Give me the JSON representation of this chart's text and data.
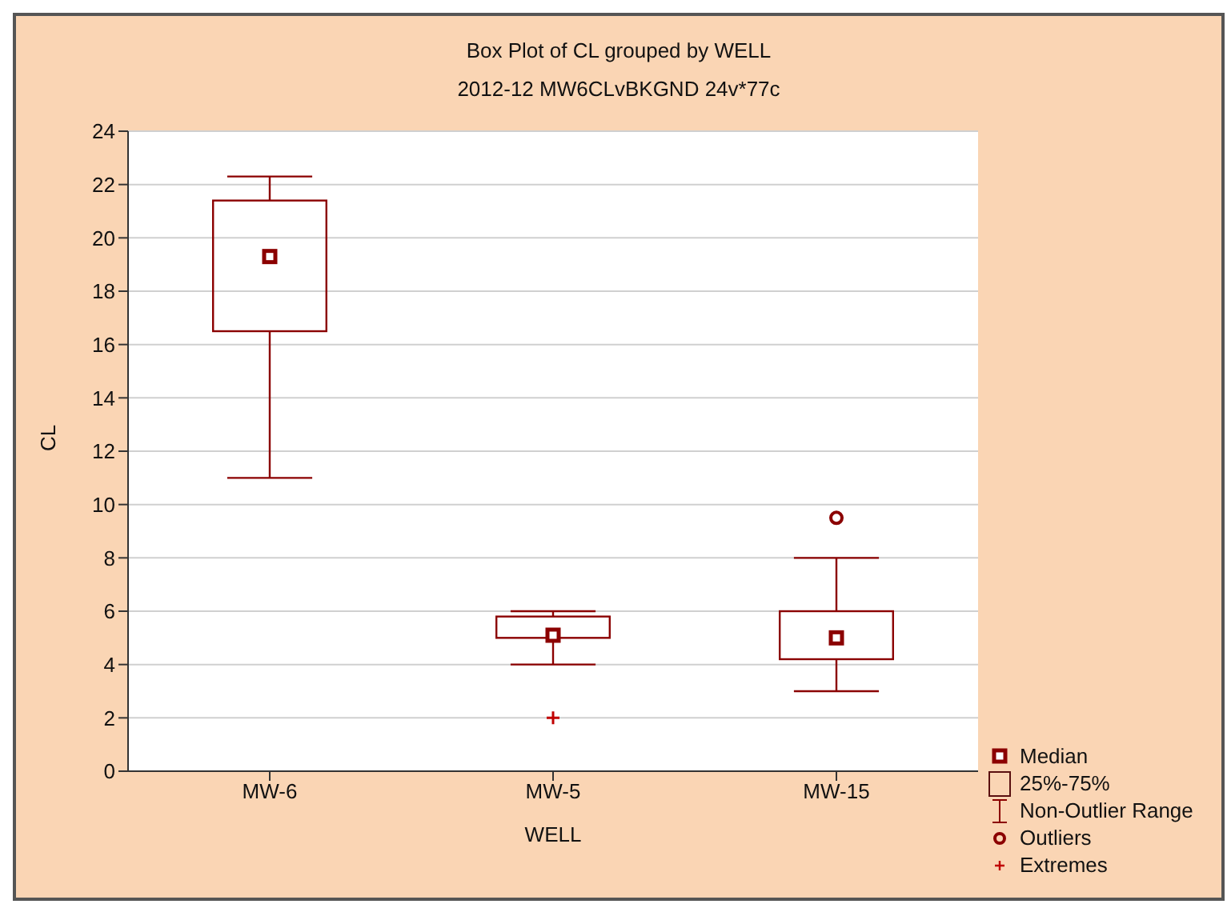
{
  "chart_data": {
    "type": "box",
    "title": "Box Plot of CL grouped by  WELL",
    "subtitle": "2012-12 MW6CLvBKGND 24v*77c",
    "xlabel": "WELL",
    "ylabel": "CL",
    "categories": [
      "MW-6",
      "MW-5",
      "MW-15"
    ],
    "series": [
      {
        "type": "box",
        "color": "#8b0000",
        "boxes": [
          {
            "low": 11.0,
            "q1": 16.5,
            "median": 19.3,
            "q3": 21.4,
            "high": 22.3
          },
          {
            "low": 4.0,
            "q1": 5.0,
            "median": 5.1,
            "q3": 5.8,
            "high": 6.0
          },
          {
            "low": 3.0,
            "q1": 4.2,
            "median": 5.0,
            "q3": 6.0,
            "high": 8.0,
            "outliers": [
              9.5
            ]
          }
        ]
      },
      {
        "type": "scatter",
        "name": "Extremes",
        "color": "#c00000",
        "marker": "cross",
        "x": [
          "MW-5"
        ],
        "values": [
          2
        ]
      }
    ],
    "ylim": [
      0,
      24
    ],
    "yticks": [
      0,
      2,
      4,
      6,
      8,
      10,
      12,
      14,
      16,
      18,
      20,
      22,
      24
    ],
    "grid": "y",
    "legend": "bottom right",
    "annotations": [
      "Median",
      "25%-75%",
      "Non-Outlier Range",
      "Outliers"
    ]
  }
}
